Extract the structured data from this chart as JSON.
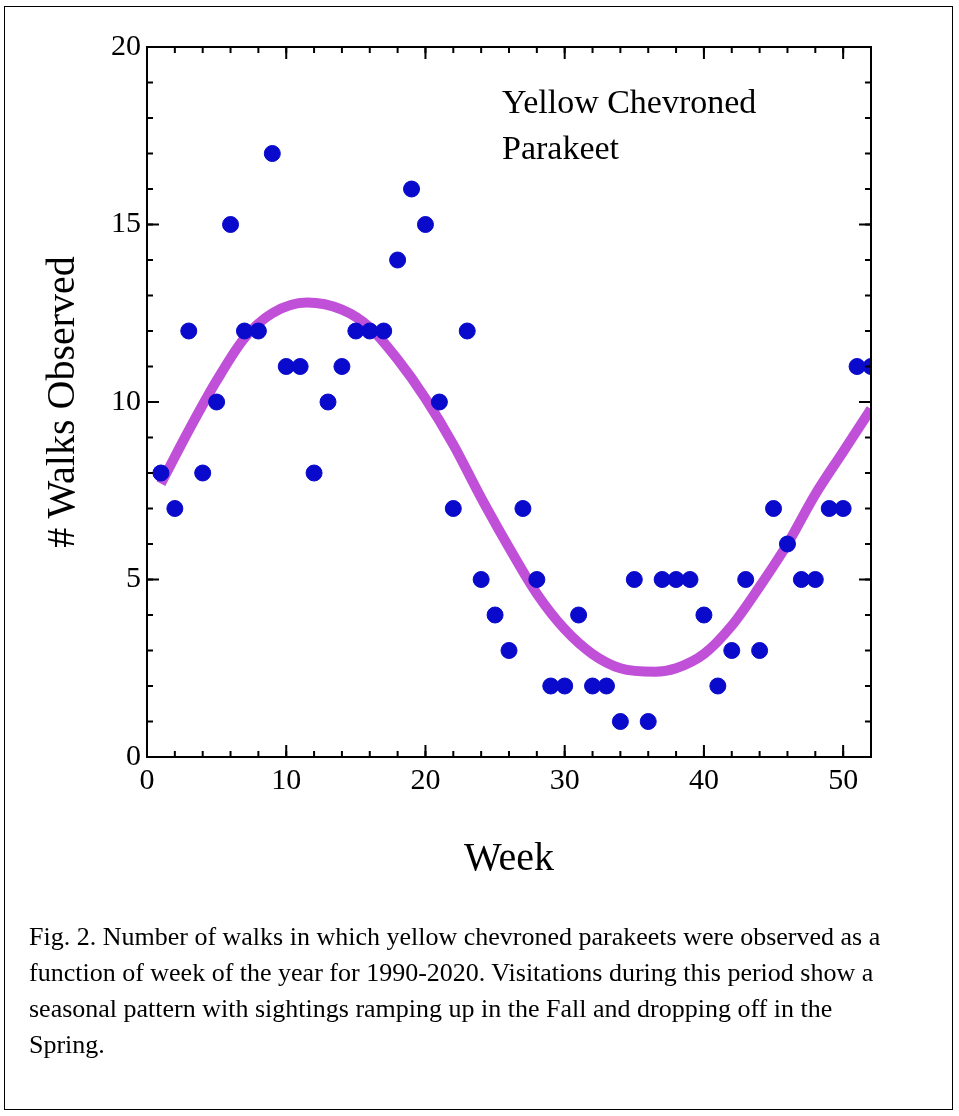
{
  "chart_data": {
    "type": "scatter",
    "xlabel": "Week",
    "ylabel": "# Walks Observed",
    "xlim": [
      0,
      52
    ],
    "xticks": [
      0,
      10,
      20,
      30,
      40,
      50
    ],
    "ylim": [
      0,
      20
    ],
    "yticks": [
      0,
      5,
      10,
      15,
      20
    ],
    "grid": false,
    "legend": false,
    "marker": "circle",
    "annotations": [
      "Yellow Chevroned Parakeet",
      "Fig. 2.  Number of walks in which yellow chevroned parakeets were observed as a function of week of the year for 1990-2020.  Visitations during this period show a seasonal pattern with sightings ramping up in the Fall and dropping off in the Spring."
    ],
    "series": [
      {
        "type": "line",
        "marker": "none",
        "color": "#c050d8",
        "x": [
          1,
          3,
          5,
          7,
          9,
          11.5,
          14,
          16,
          18,
          20,
          22,
          24,
          26,
          28,
          30,
          32,
          34,
          36.5,
          38,
          40,
          42,
          44,
          46,
          48,
          50,
          52
        ],
        "values": [
          7.7,
          9.2,
          10.6,
          11.8,
          12.5,
          12.8,
          12.6,
          12.1,
          11.2,
          10.1,
          8.8,
          7.3,
          5.9,
          4.6,
          3.6,
          2.9,
          2.5,
          2.4,
          2.5,
          2.9,
          3.7,
          4.8,
          6.0,
          7.4,
          8.6,
          9.8
        ]
      },
      {
        "color": "#0a0acc",
        "x": [
          1,
          2,
          3,
          4,
          5,
          6,
          7,
          8,
          9,
          10,
          11,
          12,
          13,
          14,
          15,
          16,
          17,
          18,
          19,
          20,
          21,
          22,
          23,
          24,
          25,
          26,
          27,
          28,
          29,
          30,
          31,
          32,
          33,
          34,
          35,
          36,
          37,
          38,
          39,
          40,
          41,
          42,
          43,
          44,
          45,
          46,
          47,
          48,
          49,
          50,
          51,
          52
        ],
        "values": [
          8,
          7,
          12,
          8,
          10,
          15,
          12,
          12,
          17,
          11,
          11,
          8,
          10,
          11,
          12,
          12,
          12,
          14,
          16,
          15,
          10,
          7,
          12,
          5,
          4,
          3,
          7,
          5,
          2,
          2,
          4,
          2,
          2,
          1,
          5,
          1,
          5,
          5,
          5,
          4,
          2,
          3,
          5,
          3,
          7,
          6,
          5,
          5,
          7,
          7,
          11,
          11
        ]
      }
    ]
  }
}
